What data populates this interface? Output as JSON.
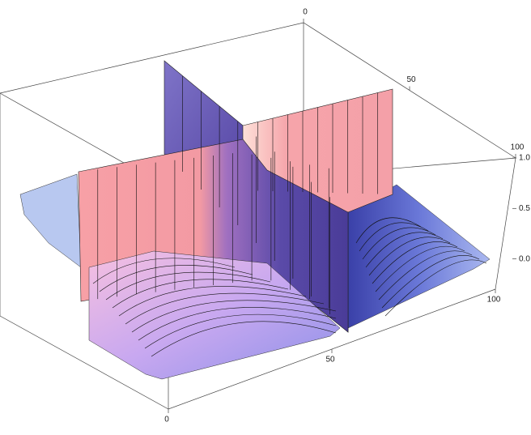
{
  "chart_data": {
    "type": "surface3d",
    "xlim": [
      0,
      100
    ],
    "xticks": [
      0,
      50,
      100
    ],
    "ylim": [
      0,
      100
    ],
    "yticks": [
      0,
      50,
      100
    ],
    "zlim": [
      -0.3,
      1.0
    ],
    "zticks": [
      {
        "value": 0,
        "label": "0.0"
      },
      0.5,
      {
        "value": 1,
        "label": "1.0"
      }
    ]
  }
}
